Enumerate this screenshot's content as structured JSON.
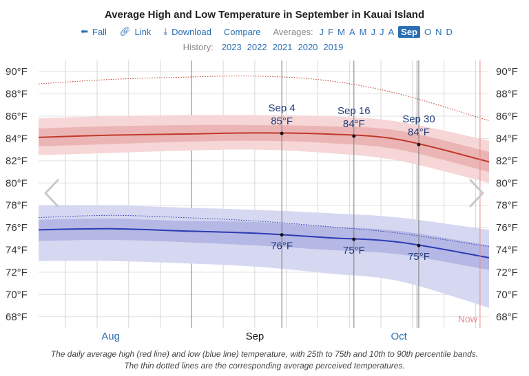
{
  "title": "Average High and Low Temperature in September in Kauai Island",
  "nav": {
    "fall": "Fall",
    "link": "Link",
    "download": "Download",
    "compare": "Compare",
    "averages_label": "Averages:",
    "months": [
      "J",
      "F",
      "M",
      "A",
      "M",
      "J",
      "J",
      "A",
      "Sep",
      "O",
      "N",
      "D"
    ],
    "selected_month_index": 8
  },
  "history": {
    "label": "History:",
    "years": [
      "2023",
      "2022",
      "2021",
      "2020",
      "2019"
    ]
  },
  "caption": {
    "line1": "The daily average high (red line) and low (blue line) temperature, with 25th to 75th and 10th to 90th percentile bands.",
    "line2": "The thin dotted lines are the corresponding average perceived temperatures."
  },
  "now_label": "Now",
  "colors": {
    "high_line": "#c0392b",
    "high_band_inner": "#e8a9a9",
    "high_band_outer": "#f6d6d6",
    "low_line": "#2b3bb3",
    "low_band_inner": "#a9acdf",
    "low_band_outer": "#d6d8f1",
    "accent": "#2a6fb3",
    "now_line": "#e88a8a"
  },
  "chart_data": {
    "type": "line",
    "x_unit": "day offset from Sep 1",
    "ylim": [
      67,
      91
    ],
    "yticks": [
      68,
      70,
      72,
      74,
      76,
      78,
      80,
      82,
      84,
      86,
      88,
      90
    ],
    "ytick_labels": [
      "68°F",
      "70°F",
      "72°F",
      "74°F",
      "76°F",
      "78°F",
      "80°F",
      "82°F",
      "84°F",
      "86°F",
      "88°F",
      "90°F"
    ],
    "month_labels": [
      {
        "label": "Aug",
        "day": -16
      },
      {
        "label": "Sep",
        "day": 0
      },
      {
        "label": "Oct",
        "day": 16
      }
    ],
    "xlim": [
      -24,
      26
    ],
    "series": [
      {
        "name": "High",
        "x": [
          -24,
          -16,
          -8,
          0,
          8,
          16,
          26
        ],
        "values": [
          84.1,
          84.3,
          84.4,
          84.5,
          84.4,
          83.9,
          81.9
        ],
        "p25": [
          83.3,
          83.5,
          83.7,
          83.8,
          83.6,
          83.0,
          81.0
        ],
        "p75": [
          84.9,
          85.1,
          85.2,
          85.2,
          85.1,
          84.7,
          82.8
        ],
        "p10": [
          82.5,
          82.7,
          82.9,
          83.0,
          82.7,
          82.0,
          80.0
        ],
        "p90": [
          85.8,
          86.0,
          86.1,
          86.1,
          86.0,
          85.5,
          83.8
        ],
        "perceived": [
          88.9,
          89.3,
          89.5,
          89.6,
          89.2,
          88.0,
          85.6
        ]
      },
      {
        "name": "Low",
        "x": [
          -24,
          -16,
          -8,
          0,
          8,
          16,
          26
        ],
        "values": [
          75.8,
          75.9,
          75.7,
          75.5,
          75.1,
          74.7,
          73.3
        ],
        "p25": [
          74.8,
          74.9,
          74.7,
          74.4,
          74.0,
          73.6,
          72.2
        ],
        "p75": [
          76.7,
          76.8,
          76.6,
          76.5,
          76.1,
          75.7,
          74.4
        ],
        "p10": [
          73.0,
          73.0,
          72.8,
          72.5,
          71.9,
          71.2,
          68.8
        ],
        "perceived": [
          76.9,
          77.1,
          76.9,
          76.6,
          76.1,
          75.5,
          74.3
        ],
        "p90": [
          78.0,
          78.0,
          77.8,
          77.6,
          77.3,
          76.9,
          75.8
        ]
      }
    ],
    "annotations": [
      {
        "date": "Sep 4",
        "day": 3,
        "high": 85,
        "low": 76,
        "high_label": "85°F",
        "low_label": "76°F"
      },
      {
        "date": "Sep 16",
        "day": 11,
        "high": 84,
        "low": 75,
        "high_label": "84°F",
        "low_label": "75°F"
      },
      {
        "date": "Sep 30",
        "day": 18.2,
        "high": 84,
        "low": 75,
        "high_label": "84°F",
        "low_label": "75°F"
      }
    ],
    "month_boundaries": [
      -7,
      18
    ],
    "now_day": 25
  }
}
